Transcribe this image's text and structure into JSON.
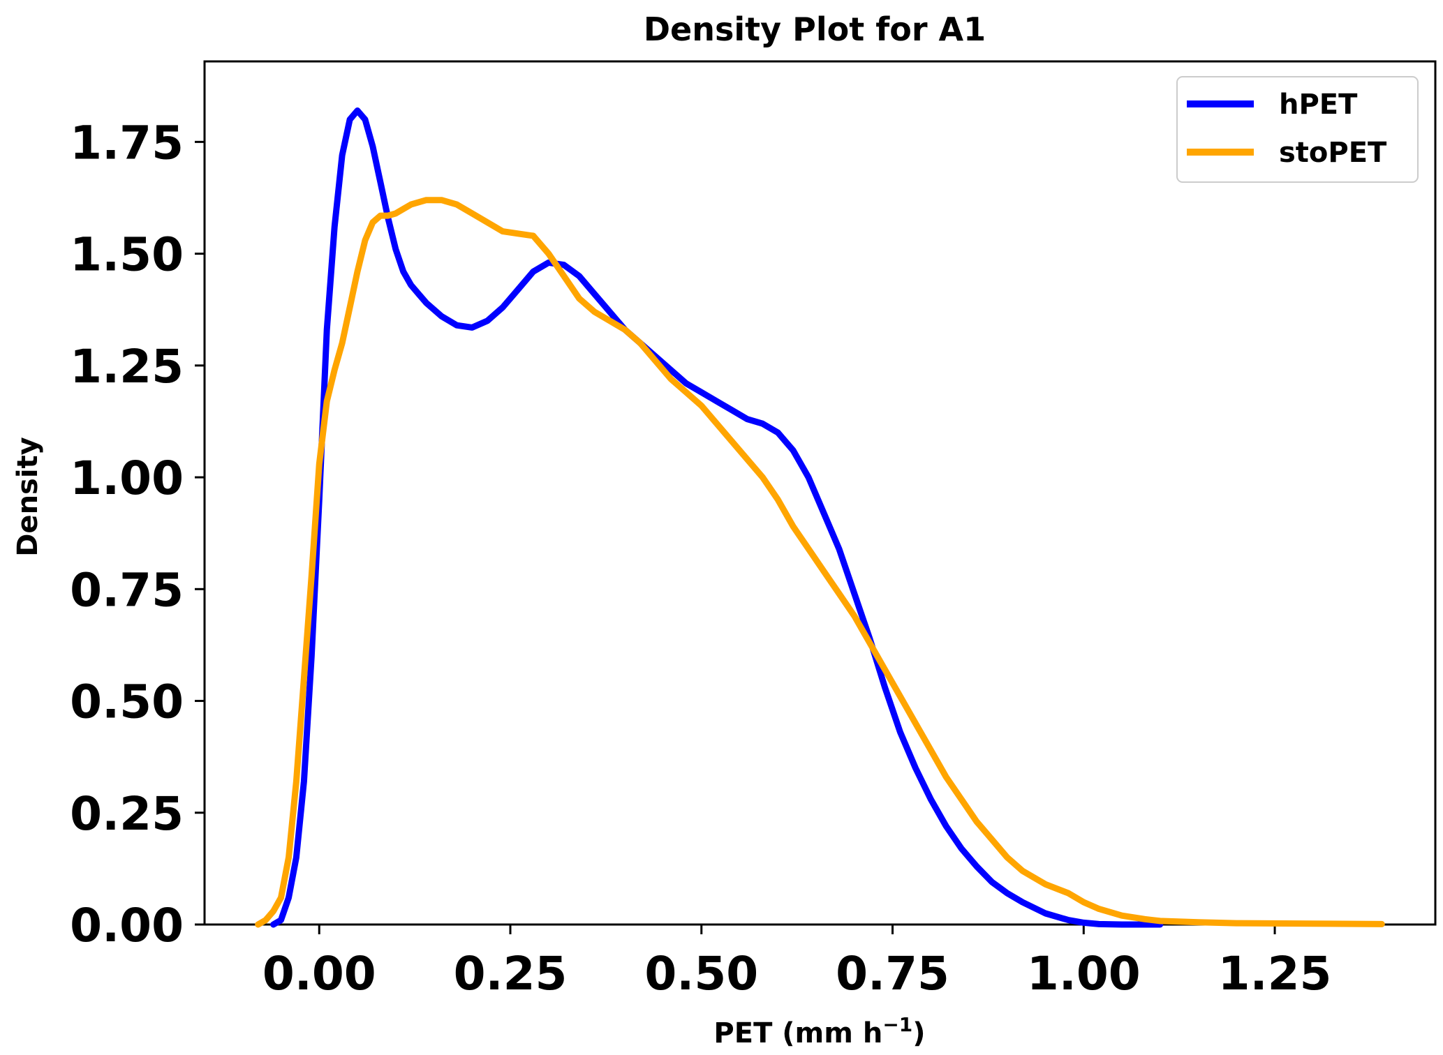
{
  "chart_data": {
    "type": "line",
    "title": "Density Plot for A1",
    "xlabel": "PET (mm h",
    "xlabel_sup": "−1",
    "xlabel_close": ")",
    "ylabel": "Density",
    "xlim": [
      -0.15,
      1.46
    ],
    "ylim": [
      0,
      1.93
    ],
    "xticks": [
      0.0,
      0.25,
      0.5,
      0.75,
      1.0,
      1.25
    ],
    "xtick_labels": [
      "0.00",
      "0.25",
      "0.50",
      "0.75",
      "1.00",
      "1.25"
    ],
    "yticks": [
      0.0,
      0.25,
      0.5,
      0.75,
      1.0,
      1.25,
      1.5,
      1.75
    ],
    "ytick_labels": [
      "0.00",
      "0.25",
      "0.50",
      "0.75",
      "1.00",
      "1.25",
      "1.50",
      "1.75"
    ],
    "grid": false,
    "legend_position": "top-right",
    "series": [
      {
        "name": "hPET",
        "color": "#0000ff",
        "x": [
          -0.06,
          -0.05,
          -0.04,
          -0.03,
          -0.02,
          -0.01,
          0.0,
          0.01,
          0.02,
          0.03,
          0.04,
          0.05,
          0.06,
          0.07,
          0.08,
          0.09,
          0.1,
          0.11,
          0.12,
          0.13,
          0.14,
          0.16,
          0.18,
          0.2,
          0.22,
          0.24,
          0.26,
          0.28,
          0.3,
          0.32,
          0.34,
          0.36,
          0.38,
          0.4,
          0.42,
          0.44,
          0.46,
          0.48,
          0.5,
          0.52,
          0.54,
          0.56,
          0.58,
          0.6,
          0.62,
          0.64,
          0.66,
          0.68,
          0.7,
          0.72,
          0.74,
          0.76,
          0.78,
          0.8,
          0.82,
          0.84,
          0.86,
          0.88,
          0.9,
          0.92,
          0.95,
          0.98,
          1.0,
          1.02,
          1.05,
          1.08,
          1.1
        ],
        "y": [
          0.0,
          0.01,
          0.06,
          0.15,
          0.32,
          0.6,
          0.95,
          1.33,
          1.56,
          1.72,
          1.8,
          1.82,
          1.8,
          1.74,
          1.66,
          1.58,
          1.51,
          1.46,
          1.43,
          1.41,
          1.39,
          1.36,
          1.34,
          1.335,
          1.35,
          1.38,
          1.42,
          1.46,
          1.48,
          1.475,
          1.45,
          1.41,
          1.37,
          1.33,
          1.3,
          1.27,
          1.24,
          1.21,
          1.19,
          1.17,
          1.15,
          1.13,
          1.12,
          1.1,
          1.06,
          1.0,
          0.92,
          0.84,
          0.74,
          0.64,
          0.53,
          0.43,
          0.35,
          0.28,
          0.22,
          0.17,
          0.13,
          0.095,
          0.07,
          0.05,
          0.025,
          0.01,
          0.004,
          0.001,
          0.0,
          0.0,
          0.0
        ]
      },
      {
        "name": "stoPET",
        "color": "#ffa500",
        "x": [
          -0.08,
          -0.07,
          -0.06,
          -0.05,
          -0.04,
          -0.03,
          -0.02,
          -0.01,
          0.0,
          0.01,
          0.02,
          0.03,
          0.04,
          0.05,
          0.06,
          0.07,
          0.08,
          0.09,
          0.1,
          0.11,
          0.12,
          0.14,
          0.16,
          0.18,
          0.2,
          0.22,
          0.24,
          0.26,
          0.28,
          0.3,
          0.32,
          0.34,
          0.36,
          0.38,
          0.4,
          0.42,
          0.44,
          0.46,
          0.48,
          0.5,
          0.52,
          0.54,
          0.56,
          0.58,
          0.6,
          0.62,
          0.64,
          0.66,
          0.68,
          0.7,
          0.72,
          0.74,
          0.76,
          0.78,
          0.8,
          0.82,
          0.84,
          0.86,
          0.88,
          0.9,
          0.92,
          0.95,
          0.98,
          1.0,
          1.02,
          1.05,
          1.08,
          1.1,
          1.15,
          1.2,
          1.3,
          1.39
        ],
        "y": [
          0.0,
          0.01,
          0.03,
          0.06,
          0.15,
          0.32,
          0.55,
          0.78,
          1.03,
          1.17,
          1.24,
          1.3,
          1.38,
          1.46,
          1.53,
          1.57,
          1.585,
          1.585,
          1.59,
          1.6,
          1.61,
          1.62,
          1.62,
          1.61,
          1.59,
          1.57,
          1.55,
          1.545,
          1.54,
          1.5,
          1.45,
          1.4,
          1.37,
          1.35,
          1.33,
          1.3,
          1.26,
          1.22,
          1.19,
          1.16,
          1.12,
          1.08,
          1.04,
          1.0,
          0.95,
          0.89,
          0.84,
          0.79,
          0.74,
          0.69,
          0.63,
          0.57,
          0.51,
          0.45,
          0.39,
          0.33,
          0.28,
          0.23,
          0.19,
          0.15,
          0.12,
          0.09,
          0.07,
          0.05,
          0.035,
          0.02,
          0.012,
          0.008,
          0.005,
          0.003,
          0.002,
          0.001
        ]
      }
    ]
  }
}
